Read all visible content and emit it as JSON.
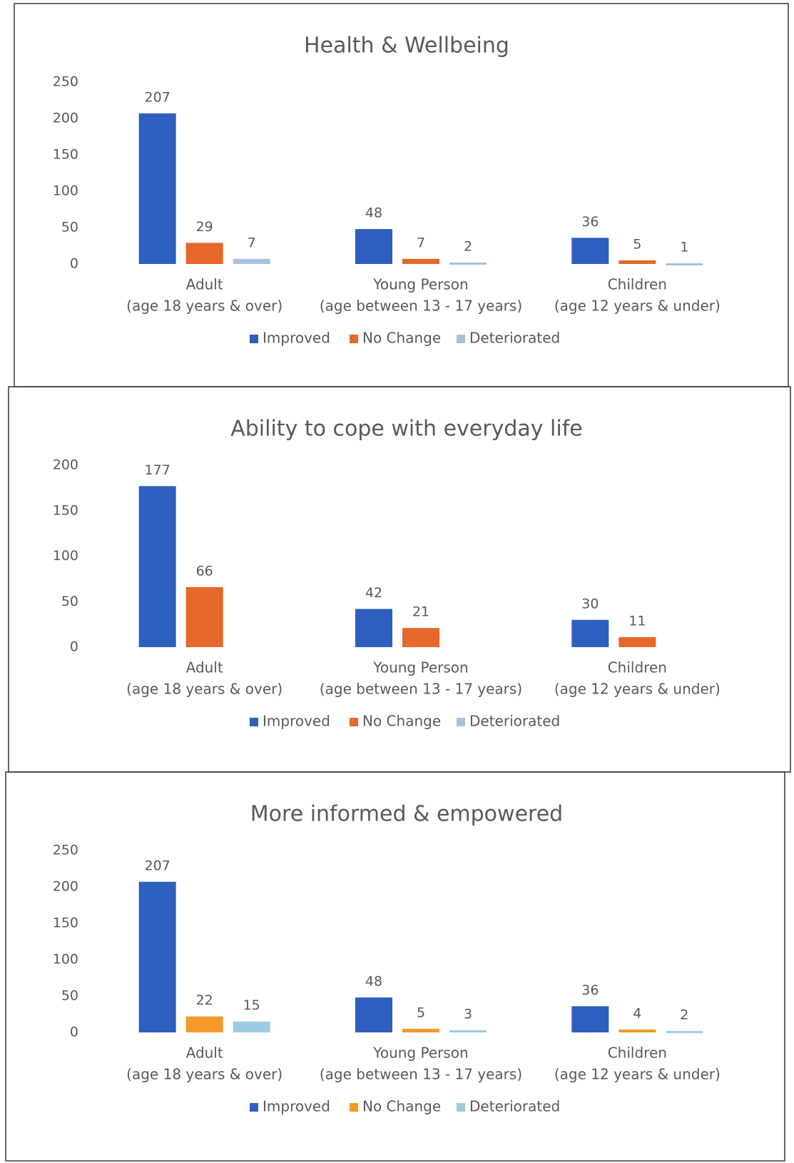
{
  "chart_data": [
    {
      "type": "bar",
      "title": "Health & Wellbeing",
      "categories": [
        [
          "Adult",
          "(age 18 years & over)"
        ],
        [
          "Young Person",
          "(age between 13 - 17 years)"
        ],
        [
          "Children",
          "(age 12 years & under)"
        ]
      ],
      "series": [
        {
          "name": "Improved",
          "color": "#2e5fbf",
          "values": [
            207,
            48,
            36
          ]
        },
        {
          "name": "No Change",
          "color": "#e8672a",
          "values": [
            29,
            7,
            5
          ]
        },
        {
          "name": "Deteriorated",
          "color": "#a9bfdc",
          "values": [
            7,
            2,
            1
          ]
        }
      ],
      "ylim": [
        0,
        250
      ],
      "yticks": [
        0,
        50,
        100,
        150,
        200,
        250
      ],
      "legend": "bottom"
    },
    {
      "type": "bar",
      "title": "Ability to cope with everyday life",
      "categories": [
        [
          "Adult",
          "(age 18 years & over)"
        ],
        [
          "Young Person",
          "(age between 13 - 17 years)"
        ],
        [
          "Children",
          "(age 12 years & under)"
        ]
      ],
      "series": [
        {
          "name": "Improved",
          "color": "#2e5fbf",
          "values": [
            177,
            42,
            30
          ]
        },
        {
          "name": "No Change",
          "color": "#e8672a",
          "values": [
            66,
            21,
            11
          ]
        },
        {
          "name": "Deteriorated",
          "color": "#a9bfdc",
          "values": [
            null,
            null,
            null
          ]
        }
      ],
      "ylim": [
        0,
        200
      ],
      "yticks": [
        0,
        50,
        100,
        150,
        200
      ],
      "legend": "bottom"
    },
    {
      "type": "bar",
      "title": "More informed & empowered",
      "categories": [
        [
          "Adult",
          "(age 18 years & over)"
        ],
        [
          "Young Person",
          "(age between 13 - 17 years)"
        ],
        [
          "Children",
          "(age 12 years & under)"
        ]
      ],
      "series": [
        {
          "name": "Improved",
          "color": "#2e5fbf",
          "values": [
            207,
            48,
            36
          ]
        },
        {
          "name": "No Change",
          "color": "#f39a2a",
          "values": [
            22,
            5,
            4
          ]
        },
        {
          "name": "Deteriorated",
          "color": "#9ecbe4",
          "values": [
            15,
            3,
            2
          ]
        }
      ],
      "ylim": [
        0,
        250
      ],
      "yticks": [
        0,
        50,
        100,
        150,
        200,
        250
      ],
      "legend": "bottom"
    }
  ]
}
